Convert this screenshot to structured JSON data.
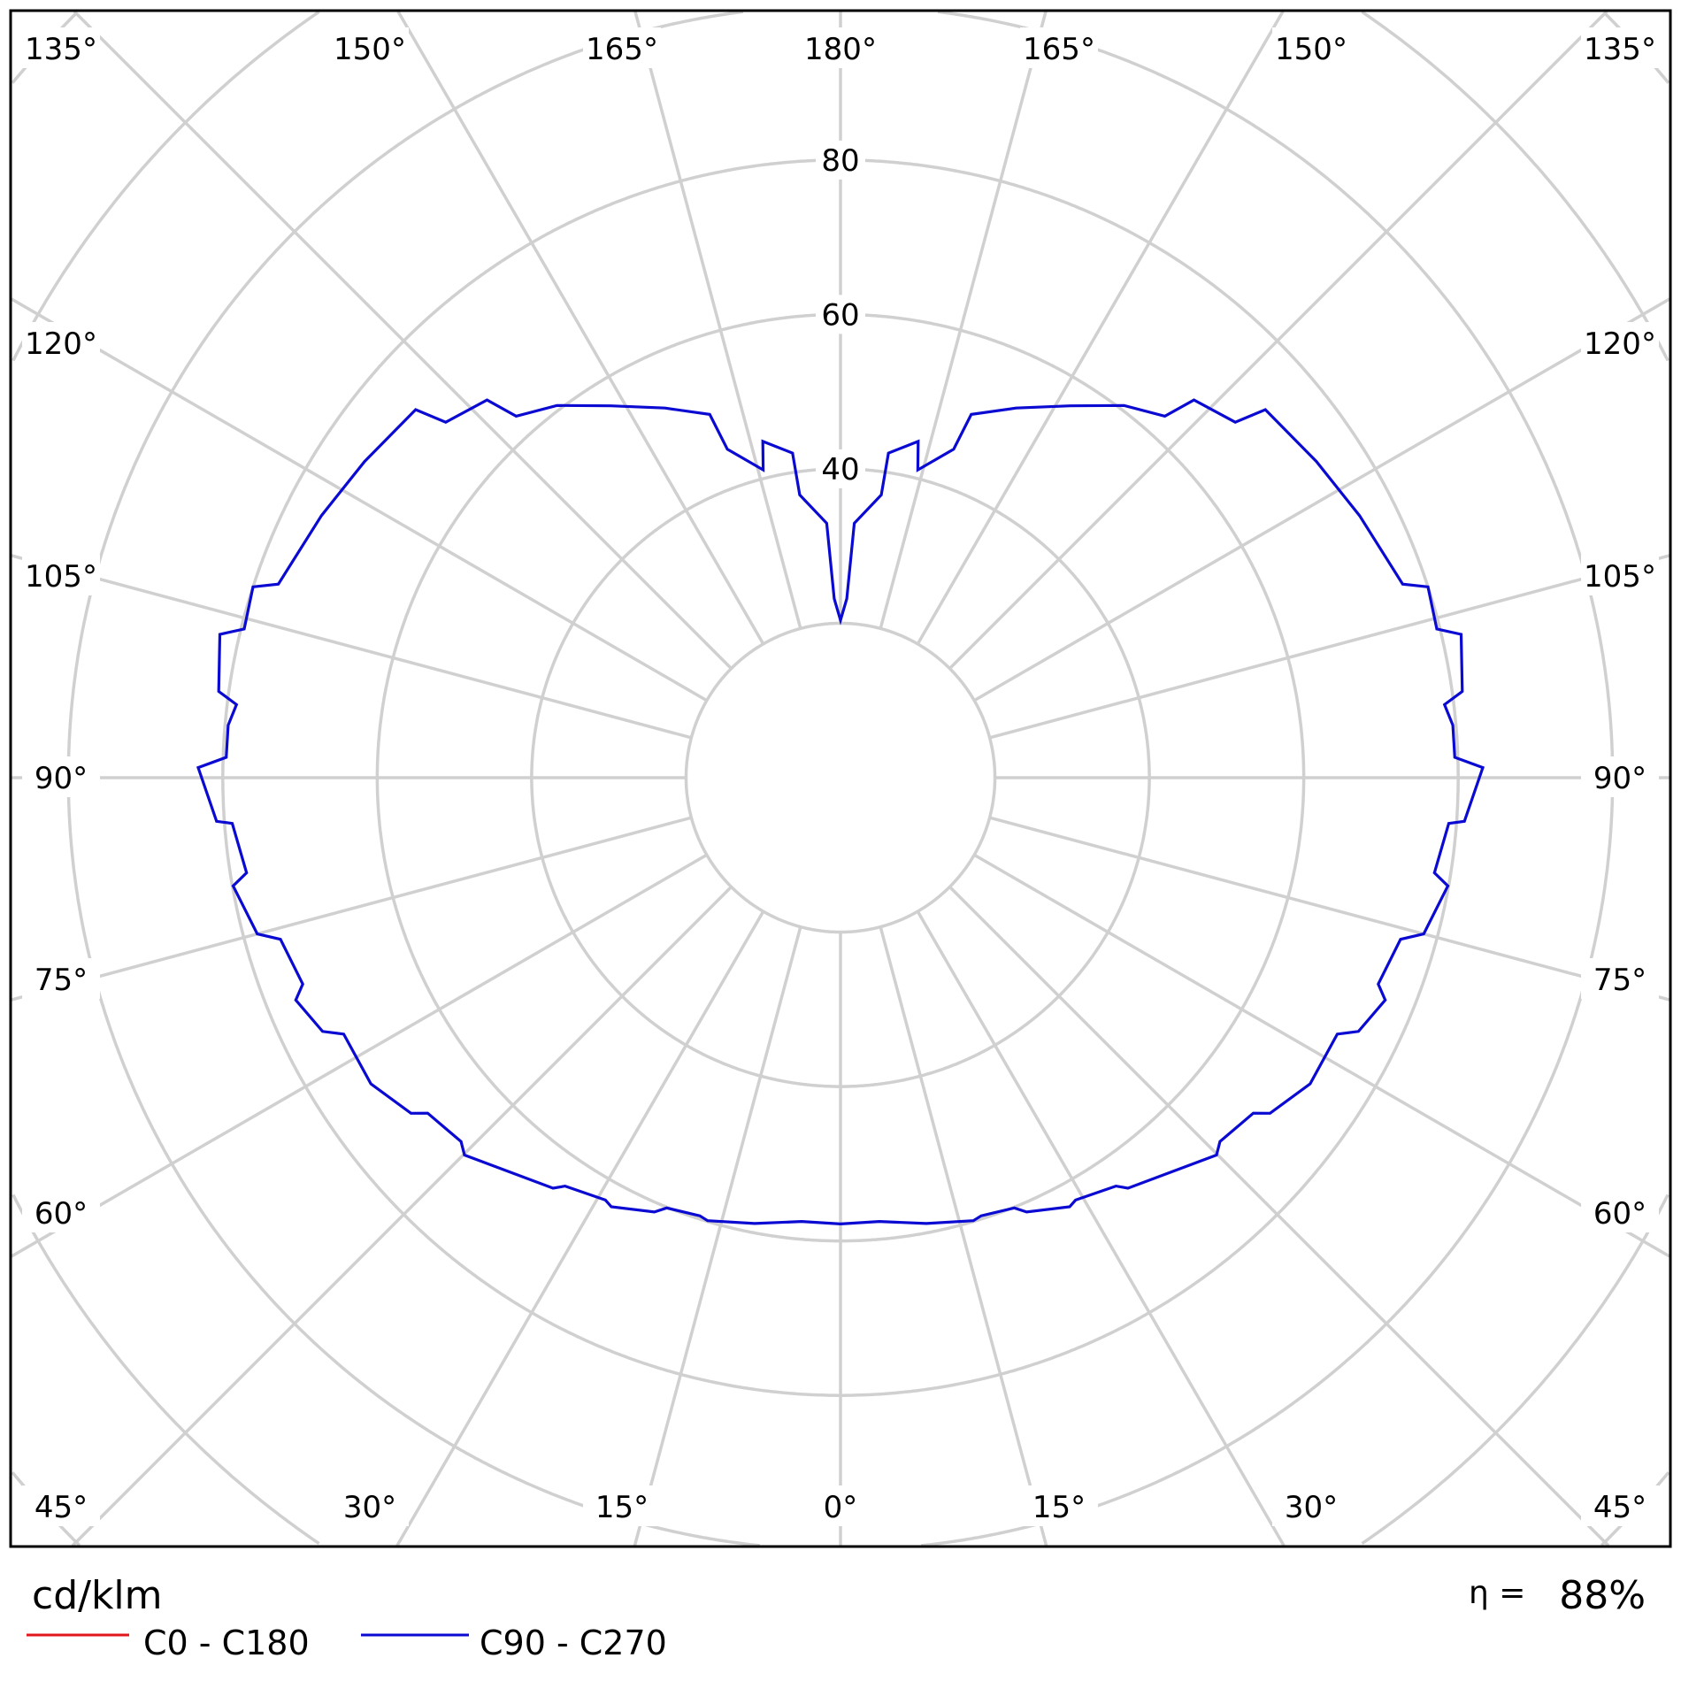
{
  "chart_data": {
    "type": "polar-line",
    "unit_label": "cd/klm",
    "efficiency_symbol": "η =",
    "efficiency_value": "88%",
    "radial_ticks": [
      20,
      40,
      60,
      80,
      100,
      120,
      140
    ],
    "radial_tick_labels": [
      "80",
      "60",
      "40"
    ],
    "angle_labels": {
      "top": [
        "135°",
        "150°",
        "165°",
        "180°",
        "165°",
        "150°",
        "135°"
      ],
      "left": [
        "120°",
        "105°",
        "90°",
        "75°",
        "60°"
      ],
      "right": [
        "120°",
        "105°",
        "90°",
        "75°",
        "60°"
      ],
      "bottom": [
        "45°",
        "30°",
        "15°",
        "0°",
        "15°",
        "30°",
        "45°"
      ]
    },
    "grid": true,
    "legend_position": "bottom-left",
    "series": [
      {
        "name": "C0 - C180",
        "color": "#e0161b",
        "points": []
      },
      {
        "name": "C90 - C270",
        "color": "#0a0ad2",
        "symmetric": true,
        "points": [
          [
            0,
            57.8
          ],
          [
            5,
            57.7
          ],
          [
            10.9,
            58.8
          ],
          [
            16.7,
            59.9
          ],
          [
            17.8,
            59.6
          ],
          [
            22,
            60.1
          ],
          [
            23.2,
            61.2
          ],
          [
            28.1,
            63
          ],
          [
            29.1,
            62.6
          ],
          [
            34,
            63.8
          ],
          [
            35,
            64.9
          ],
          [
            44.9,
            69
          ],
          [
            46.2,
            68.1
          ],
          [
            50.9,
            68.9
          ],
          [
            52,
            70.6
          ],
          [
            56.9,
            72.6
          ],
          [
            62.7,
            72.4
          ],
          [
            63.9,
            74.7
          ],
          [
            67.8,
            76.2
          ],
          [
            69,
            74.6
          ],
          [
            73.9,
            75.5
          ],
          [
            75,
            78.2
          ],
          [
            79.9,
            79.9
          ],
          [
            80.9,
            77.9
          ],
          [
            85.7,
            79
          ],
          [
            86,
            81
          ],
          [
            90.9,
            83.2
          ],
          [
            91.9,
            79.6
          ],
          [
            94.9,
            79.6
          ],
          [
            96.9,
            78.8
          ],
          [
            97.9,
            81.3
          ],
          [
            103,
            82.5
          ],
          [
            104,
            79.6
          ],
          [
            108,
            80
          ],
          [
            109,
            77
          ],
          [
            116.8,
            75.3
          ],
          [
            123.6,
            74
          ],
          [
            130.9,
            72.8
          ],
          [
            132,
            68.8
          ],
          [
            136.9,
            67
          ],
          [
            138.1,
            62.9
          ],
          [
            142.7,
            60.6
          ],
          [
            148.3,
            56.6
          ],
          [
            154.6,
            53
          ],
          [
            160.2,
            50
          ],
          [
            161,
            45
          ],
          [
            165.9,
            41.1
          ],
          [
            167,
            44.7
          ],
          [
            171.6,
            42.5
          ],
          [
            171.8,
            37
          ],
          [
            176.9,
            33
          ],
          [
            178,
            23.2
          ],
          [
            180,
            20.4
          ]
        ]
      }
    ]
  }
}
